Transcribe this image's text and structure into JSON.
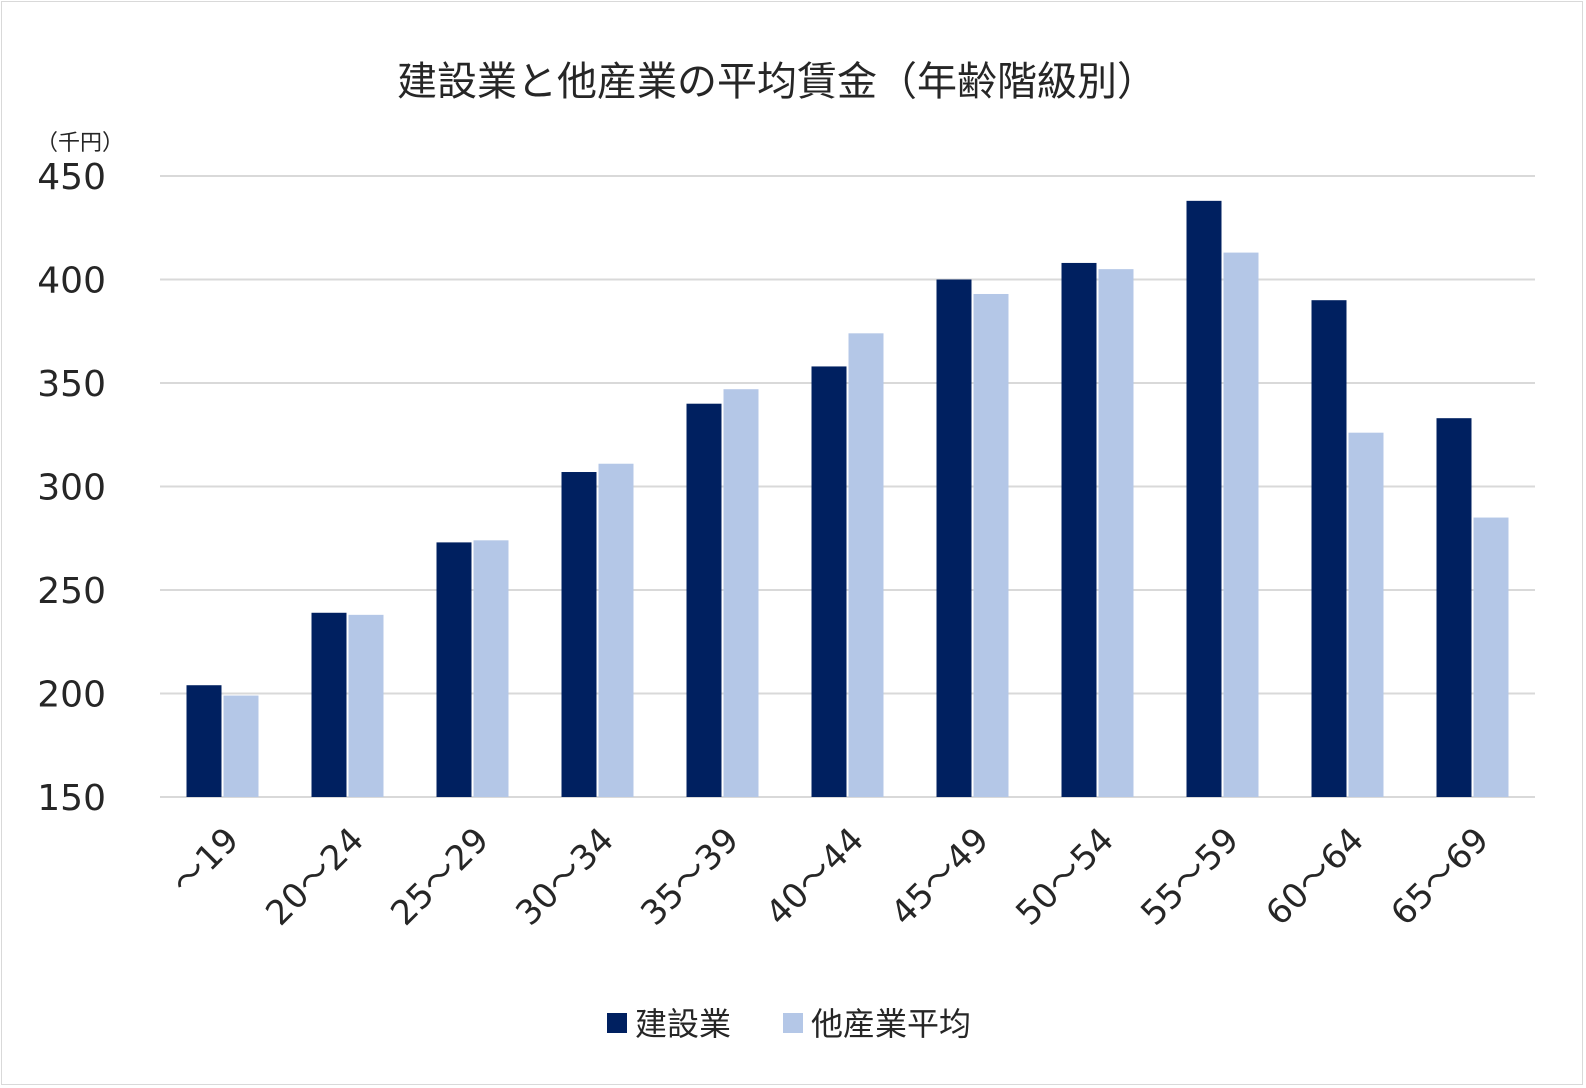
{
  "chart_data": {
    "type": "bar",
    "title": "建設業と他産業の平均賃金（年齢階級別）",
    "unit_label": "（千円）",
    "xlabel": "",
    "ylabel": "",
    "ylim": [
      150,
      450
    ],
    "yticks": [
      150,
      200,
      250,
      300,
      350,
      400,
      450
    ],
    "grid": true,
    "legend_position": "bottom",
    "categories": [
      "～19",
      "20～24",
      "25～29",
      "30～34",
      "35～39",
      "40～44",
      "45～49",
      "50～54",
      "55～59",
      "60～64",
      "65～69"
    ],
    "series": [
      {
        "name": "建設業",
        "color": "#002060",
        "values": [
          204,
          239,
          273,
          307,
          340,
          358,
          400,
          408,
          438,
          390,
          333
        ]
      },
      {
        "name": "他産業平均",
        "color": "#b4c7e7",
        "values": [
          199,
          238,
          274,
          311,
          347,
          374,
          393,
          405,
          413,
          326,
          285
        ]
      }
    ]
  }
}
